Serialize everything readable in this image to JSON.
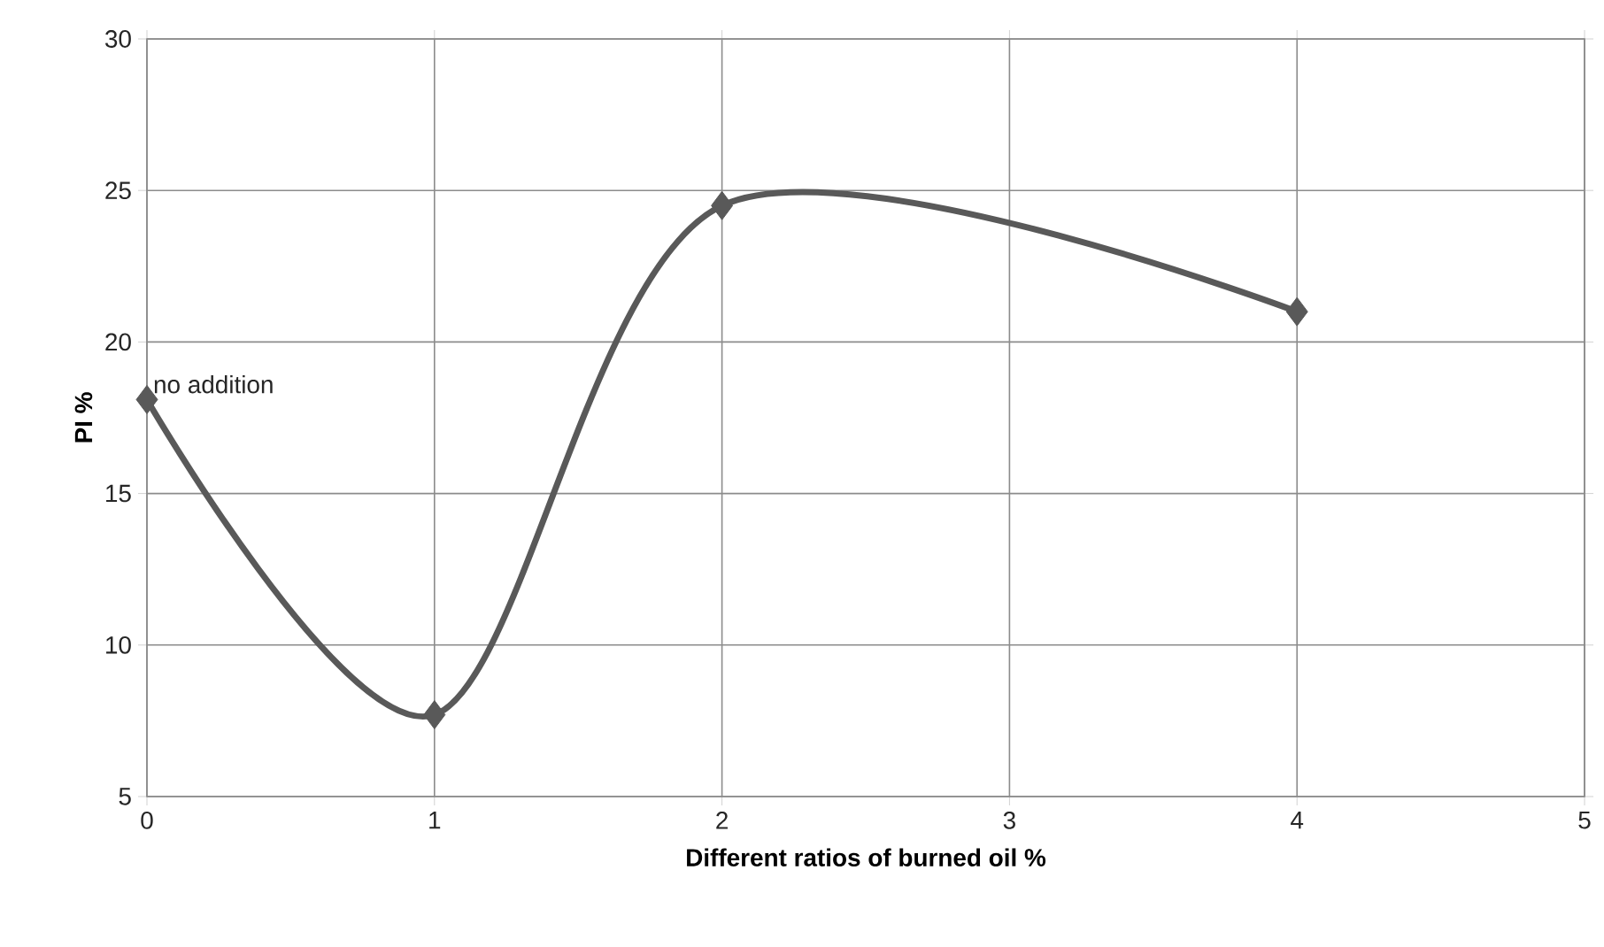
{
  "chart_data": {
    "type": "line",
    "xlabel": "Different ratios of burned oil %",
    "ylabel": "PI %",
    "x": [
      0,
      1,
      2,
      4
    ],
    "series": [
      {
        "color": "#595959",
        "values": [
          18.1,
          7.7,
          24.5,
          21.0
        ]
      }
    ],
    "xlim": [
      0,
      5
    ],
    "xticks": [
      0,
      1,
      2,
      3,
      4,
      5
    ],
    "ylim": [
      5,
      30
    ],
    "yticks": [
      5,
      10,
      15,
      20,
      25,
      30
    ],
    "grid": true,
    "marker": "diamond",
    "line_style": "solid",
    "annotations": [
      {
        "text": "no addition",
        "x": 0,
        "y": 18.1
      }
    ]
  }
}
